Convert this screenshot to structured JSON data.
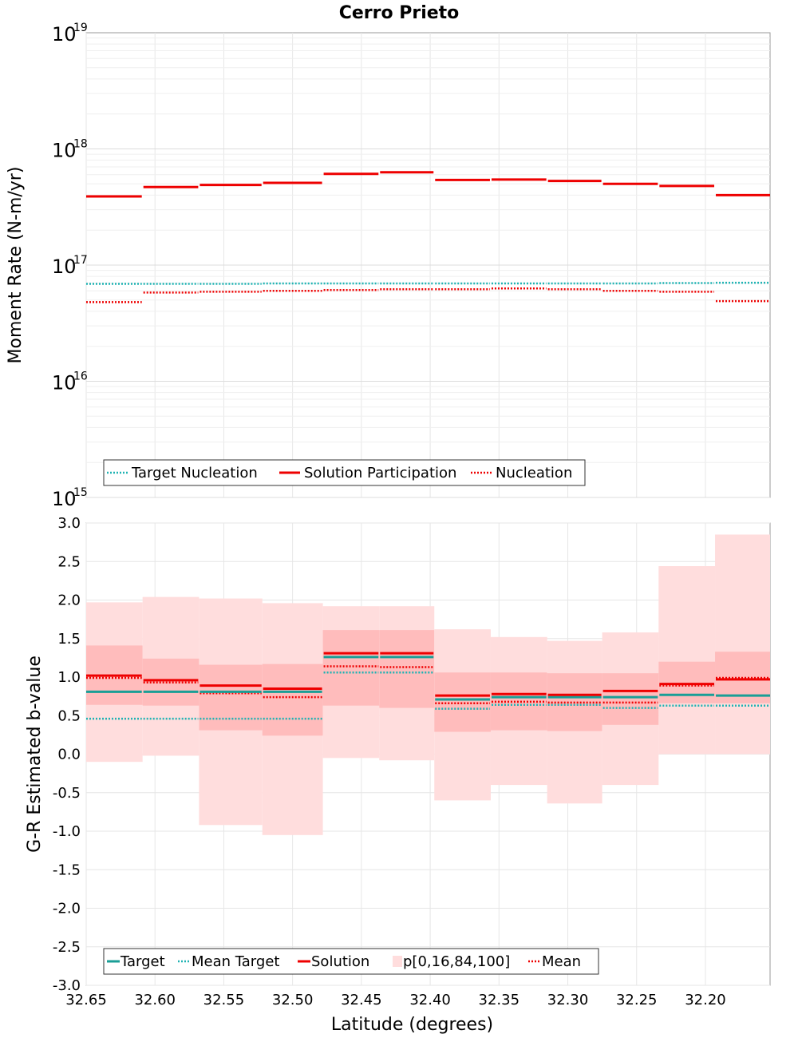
{
  "title": "Cerro Prieto",
  "colors": {
    "target": "#1a9e96",
    "target_nucleation": "#1fb3b3",
    "solution": "#ee0000",
    "mean": "#ee0000",
    "band_outer": "#ffdddd",
    "band_inner": "#ffbcbc",
    "grid": "#e6e6e6"
  },
  "chart_data": [
    {
      "type": "line",
      "subtype": "step",
      "ylabel": "Moment Rate (N-m/yr)",
      "yscale": "log",
      "ylim": [
        1000000000000000.0,
        1e+19
      ],
      "xlim": [
        32.65,
        32.153
      ],
      "ytick_labels": [
        {
          "base": "10",
          "exp": "15"
        },
        {
          "base": "10",
          "exp": "16"
        },
        {
          "base": "10",
          "exp": "17"
        },
        {
          "base": "10",
          "exp": "18"
        },
        {
          "base": "10",
          "exp": "19"
        }
      ],
      "bins": [
        [
          32.65,
          32.609
        ],
        [
          32.609,
          32.568
        ],
        [
          32.568,
          32.522
        ],
        [
          32.522,
          32.478
        ],
        [
          32.478,
          32.437
        ],
        [
          32.437,
          32.397
        ],
        [
          32.397,
          32.356
        ],
        [
          32.356,
          32.315
        ],
        [
          32.315,
          32.275
        ],
        [
          32.275,
          32.234
        ],
        [
          32.234,
          32.193
        ],
        [
          32.193,
          32.153
        ]
      ],
      "series": [
        {
          "name": "Target Nucleation",
          "style": "dotted",
          "values": [
            6.9e+16,
            6.9e+16,
            6.9e+16,
            6.95e+16,
            6.95e+16,
            6.95e+16,
            6.95e+16,
            6.95e+16,
            6.95e+16,
            6.95e+16,
            7e+16,
            7.05e+16
          ]
        },
        {
          "name": "Solution Participation",
          "style": "solid",
          "values": [
            3.9e+17,
            4.7e+17,
            4.9e+17,
            5.1e+17,
            6.1e+17,
            6.3e+17,
            5.4e+17,
            5.45e+17,
            5.3e+17,
            5e+17,
            4.8e+17,
            4e+17
          ]
        },
        {
          "name": "Nucleation",
          "style": "dotted",
          "values": [
            4.8e+16,
            5.8e+16,
            5.9e+16,
            6e+16,
            6.1e+16,
            6.2e+16,
            6.2e+16,
            6.3e+16,
            6.2e+16,
            6e+16,
            5.9e+16,
            4.9e+16
          ]
        }
      ],
      "legend": [
        "Target Nucleation",
        "Solution Participation",
        "Nucleation"
      ],
      "legend_position": "lower-left"
    },
    {
      "type": "line",
      "subtype": "step",
      "xlabel": "Latitude (degrees)",
      "ylabel": "G-R Estimated b-value",
      "ylim": [
        -3.0,
        3.0
      ],
      "xlim": [
        32.65,
        32.153
      ],
      "yticks": [
        "-3.0",
        "-2.5",
        "-2.0",
        "-1.5",
        "-1.0",
        "-0.5",
        "0.0",
        "0.5",
        "1.0",
        "1.5",
        "2.0",
        "2.5",
        "3.0"
      ],
      "xticks": [
        "32.65",
        "32.60",
        "32.55",
        "32.50",
        "32.45",
        "32.40",
        "32.35",
        "32.30",
        "32.25",
        "32.20"
      ],
      "bins": [
        [
          32.65,
          32.609
        ],
        [
          32.609,
          32.568
        ],
        [
          32.568,
          32.522
        ],
        [
          32.522,
          32.478
        ],
        [
          32.478,
          32.437
        ],
        [
          32.437,
          32.397
        ],
        [
          32.397,
          32.356
        ],
        [
          32.356,
          32.315
        ],
        [
          32.315,
          32.275
        ],
        [
          32.275,
          32.234
        ],
        [
          32.234,
          32.193
        ],
        [
          32.193,
          32.153
        ]
      ],
      "bands": {
        "name": "p[0,16,84,100]",
        "p0": [
          -0.1,
          -0.02,
          -0.92,
          -1.05,
          -0.05,
          -0.08,
          -0.6,
          -0.4,
          -0.64,
          -0.4,
          0.0,
          0.0
        ],
        "p100": [
          1.97,
          2.04,
          2.02,
          1.96,
          1.92,
          1.92,
          1.62,
          1.52,
          1.47,
          1.58,
          2.44,
          2.85
        ],
        "p16": [
          0.64,
          0.63,
          0.31,
          0.24,
          0.63,
          0.6,
          0.29,
          0.31,
          0.3,
          0.38,
          0.66,
          0.66
        ],
        "p84": [
          1.41,
          1.24,
          1.16,
          1.17,
          1.61,
          1.61,
          1.06,
          1.06,
          1.05,
          1.05,
          1.2,
          1.33
        ]
      },
      "series": [
        {
          "name": "Target",
          "style": "solid",
          "values": [
            0.81,
            0.81,
            0.81,
            0.81,
            1.26,
            1.26,
            0.71,
            0.74,
            0.74,
            0.74,
            0.77,
            0.76
          ]
        },
        {
          "name": "Mean Target",
          "style": "dotted",
          "values": [
            0.46,
            0.46,
            0.46,
            0.46,
            1.06,
            1.06,
            0.59,
            0.64,
            0.64,
            0.6,
            0.63,
            0.63
          ]
        },
        {
          "name": "Solution",
          "style": "solid",
          "values": [
            1.02,
            0.96,
            0.89,
            0.85,
            1.31,
            1.31,
            0.76,
            0.78,
            0.77,
            0.82,
            0.91,
            0.97
          ]
        },
        {
          "name": "Mean",
          "style": "dotted",
          "values": [
            0.99,
            0.93,
            0.79,
            0.74,
            1.14,
            1.13,
            0.66,
            0.68,
            0.67,
            0.67,
            0.89,
            0.99
          ]
        }
      ],
      "legend": [
        "Target",
        "Mean Target",
        "Solution",
        "p[0,16,84,100]",
        "Mean"
      ],
      "legend_position": "lower-left"
    }
  ]
}
